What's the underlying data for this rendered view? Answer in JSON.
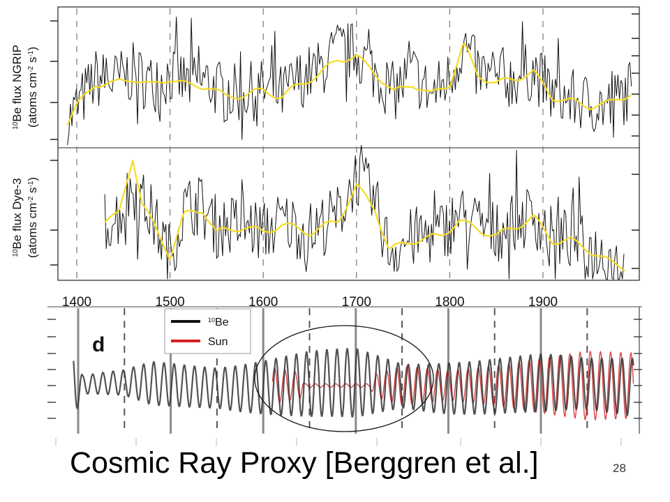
{
  "slide": {
    "title": "Cosmic Ray Proxy [Berggren et al.]",
    "page_number": "28"
  },
  "colors": {
    "flux_line": "#111111",
    "smooth_line": "#f5dc23",
    "be_line": "#111111",
    "sun_line": "#d42020",
    "sun_fill": "#e89a9a",
    "dashed_grid": "#777777",
    "solid_grid": "#8a8a8a"
  },
  "chart_data": [
    {
      "type": "line",
      "panel": "NGRIP",
      "ylabel": "10Be flux NGRIP (atoms cm-2 s-1)",
      "ylabel_parts": {
        "sup": "10",
        "main": "Be flux NGRIP",
        "unit_pre": "(atoms cm",
        "unit_sup1": "-2",
        "unit_mid": " s",
        "unit_sup2": "-1",
        "unit_post": ")"
      },
      "x_ticks": [
        1400,
        1500,
        1600,
        1700,
        1800,
        1900
      ],
      "xlim": [
        1388,
        1998
      ],
      "dashed_gridlines": [
        1400,
        1500,
        1600,
        1700,
        1800,
        1900
      ],
      "grid": "dashed-vertical",
      "series": [
        {
          "style": "noisy-black",
          "x": [
            1390,
            1420,
            1440,
            1460,
            1480,
            1500,
            1520,
            1540,
            1560,
            1580,
            1600,
            1620,
            1640,
            1660,
            1680,
            1700,
            1720,
            1740,
            1760,
            1780,
            1800,
            1815,
            1830,
            1850,
            1870,
            1890,
            1910,
            1930,
            1950,
            1970,
            1995
          ],
          "y": [
            0.15,
            0.55,
            0.52,
            0.6,
            0.5,
            0.58,
            0.5,
            0.52,
            0.4,
            0.42,
            0.45,
            0.4,
            0.55,
            0.62,
            0.8,
            0.78,
            0.6,
            0.42,
            0.6,
            0.4,
            0.55,
            0.85,
            0.6,
            0.52,
            0.55,
            0.62,
            0.4,
            0.36,
            0.32,
            0.3,
            0.45
          ]
        },
        {
          "style": "smoothed-yellow",
          "x": [
            1390,
            1400,
            1420,
            1440,
            1460,
            1480,
            1500,
            1520,
            1540,
            1560,
            1580,
            1600,
            1620,
            1640,
            1660,
            1680,
            1700,
            1720,
            1740,
            1760,
            1780,
            1800,
            1815,
            1830,
            1850,
            1870,
            1890,
            1910,
            1930,
            1950,
            1970,
            1995
          ],
          "y": [
            0.15,
            0.3,
            0.5,
            0.5,
            0.55,
            0.48,
            0.55,
            0.48,
            0.48,
            0.38,
            0.4,
            0.44,
            0.38,
            0.5,
            0.58,
            0.72,
            0.74,
            0.6,
            0.42,
            0.5,
            0.4,
            0.5,
            0.85,
            0.58,
            0.5,
            0.55,
            0.6,
            0.38,
            0.34,
            0.3,
            0.32,
            0.42
          ]
        }
      ]
    },
    {
      "type": "line",
      "panel": "Dye-3",
      "ylabel": "10Be flux Dye-3 (atoms cm-2 s-1)",
      "ylabel_parts": {
        "sup": "10",
        "main": "Be flux Dye-3",
        "unit_pre": "(atoms cm",
        "unit_sup1": "-2",
        "unit_mid": " s",
        "unit_sup2": "-1",
        "unit_post": ")"
      },
      "x_ticks": [
        1400,
        1500,
        1600,
        1700,
        1800,
        1900
      ],
      "xlim": [
        1388,
        1998
      ],
      "series": [
        {
          "style": "noisy-black",
          "x": [
            1430,
            1445,
            1460,
            1480,
            1500,
            1515,
            1530,
            1550,
            1580,
            1600,
            1620,
            1650,
            1680,
            1700,
            1720,
            1735,
            1760,
            1790,
            1810,
            1830,
            1850,
            1870,
            1890,
            1910,
            1930,
            1950,
            1970,
            1988
          ],
          "y": [
            0.45,
            0.5,
            0.75,
            0.5,
            0.15,
            0.55,
            0.6,
            0.4,
            0.42,
            0.35,
            0.45,
            0.35,
            0.5,
            0.85,
            0.6,
            0.2,
            0.3,
            0.35,
            0.5,
            0.42,
            0.35,
            0.45,
            0.5,
            0.3,
            0.3,
            0.2,
            0.15,
            0.05
          ]
        },
        {
          "style": "smoothed-yellow",
          "x": [
            1430,
            1445,
            1460,
            1470,
            1480,
            1500,
            1515,
            1535,
            1550,
            1580,
            1600,
            1620,
            1650,
            1680,
            1700,
            1720,
            1735,
            1760,
            1790,
            1810,
            1830,
            1850,
            1870,
            1890,
            1910,
            1930,
            1950,
            1970,
            1988
          ],
          "y": [
            0.45,
            0.5,
            1.0,
            0.6,
            0.45,
            0.15,
            0.5,
            0.55,
            0.35,
            0.4,
            0.35,
            0.42,
            0.35,
            0.45,
            0.75,
            0.55,
            0.2,
            0.28,
            0.32,
            0.45,
            0.38,
            0.32,
            0.4,
            0.48,
            0.28,
            0.28,
            0.2,
            0.1,
            0.05
          ]
        }
      ]
    },
    {
      "type": "line",
      "panel": "d",
      "panel_label": "d",
      "x_ticks": [
        1400,
        1500,
        1600,
        1700,
        1800,
        1900
      ],
      "dashed_gridlines": [
        1450,
        1550,
        1650,
        1750,
        1850,
        1950
      ],
      "solid_gridlines": [
        1400,
        1500,
        1600,
        1700,
        1800,
        1900
      ],
      "legend_position": "top-left",
      "legend": [
        {
          "sup": "10",
          "name": "Be",
          "color": "#111111"
        },
        {
          "sup": "",
          "name": "Sun",
          "color": "#d42020"
        }
      ],
      "annotation": "ellipse highlighting ~1610–1780",
      "series": [
        {
          "name": "10Be",
          "period_years": 11,
          "x_start": 1395,
          "x_end": 2000,
          "amplitude_by_year": [
            [
              1395,
              0.9
            ],
            [
              1405,
              0.25
            ],
            [
              1450,
              0.35
            ],
            [
              1480,
              0.6
            ],
            [
              1550,
              0.55
            ],
            [
              1620,
              0.8
            ],
            [
              1650,
              0.9
            ],
            [
              1700,
              0.95
            ],
            [
              1750,
              0.6
            ],
            [
              1800,
              0.7
            ],
            [
              1850,
              0.75
            ],
            [
              1900,
              0.8
            ],
            [
              1950,
              0.7
            ],
            [
              2000,
              0.8
            ]
          ]
        },
        {
          "name": "Sun",
          "period_years": 11,
          "x_start": 1610,
          "x_end": 2000,
          "quiet_interval": [
            1645,
            1715
          ],
          "amplitude_by_year": [
            [
              1610,
              0.5
            ],
            [
              1640,
              0.35
            ],
            [
              1645,
              0.05
            ],
            [
              1715,
              0.05
            ],
            [
              1720,
              0.3
            ],
            [
              1750,
              0.55
            ],
            [
              1800,
              0.4
            ],
            [
              1850,
              0.55
            ],
            [
              1900,
              0.75
            ],
            [
              1950,
              0.95
            ],
            [
              2000,
              0.9
            ]
          ]
        }
      ]
    }
  ]
}
